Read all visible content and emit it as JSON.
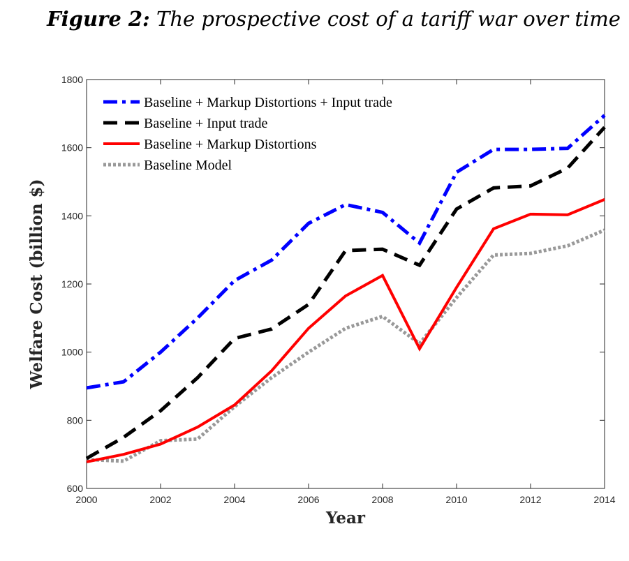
{
  "figure": {
    "number_label": "Figure 2:",
    "title": "The prospective cost of a tariff war over time"
  },
  "chart_data": {
    "type": "line",
    "xlabel": "Year",
    "ylabel": "Welfare Cost (billion $)",
    "xlim": [
      2000,
      2014
    ],
    "ylim": [
      600,
      1800
    ],
    "xticks": [
      2000,
      2002,
      2004,
      2006,
      2008,
      2010,
      2012,
      2014
    ],
    "yticks": [
      600,
      800,
      1000,
      1200,
      1400,
      1600,
      1800
    ],
    "grid": false,
    "legend_position": "top-left",
    "x": [
      2000,
      2001,
      2002,
      2003,
      2004,
      2005,
      2006,
      2007,
      2008,
      2009,
      2010,
      2011,
      2012,
      2013,
      2014
    ],
    "series": [
      {
        "name": "Baseline + Markup Distortions + Input trade",
        "color": "#0000ff",
        "style": "dashdot",
        "values": [
          895,
          913,
          1000,
          1100,
          1210,
          1270,
          1378,
          1433,
          1410,
          1320,
          1528,
          1595,
          1595,
          1598,
          1695
        ]
      },
      {
        "name": "Baseline + Input trade",
        "color": "#000000",
        "style": "dashed",
        "values": [
          688,
          750,
          828,
          925,
          1040,
          1068,
          1140,
          1298,
          1302,
          1255,
          1420,
          1482,
          1488,
          1540,
          1660
        ]
      },
      {
        "name": "Baseline + Markup Distortions",
        "color": "#ff0000",
        "style": "solid",
        "values": [
          678,
          700,
          730,
          780,
          845,
          945,
          1070,
          1165,
          1225,
          1010,
          1190,
          1362,
          1405,
          1403,
          1448
        ]
      },
      {
        "name": "Baseline Model",
        "color": "#999999",
        "style": "dotted",
        "values": [
          685,
          680,
          740,
          745,
          840,
          925,
          1000,
          1070,
          1105,
          1025,
          1160,
          1285,
          1290,
          1312,
          1358
        ]
      }
    ]
  }
}
